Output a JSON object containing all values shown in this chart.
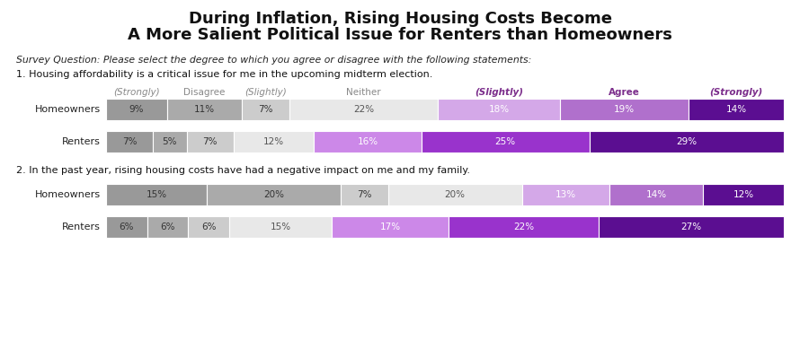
{
  "title_line1": "During Inflation, Rising Housing Costs Become",
  "title_line2": "A More Salient Political Issue for Renters than Homeowners",
  "survey_q": "Survey Question: Please select the degree to which you agree or disagree with the following statements:",
  "q1_label": "1. Housing affordability is a critical issue for me in the upcoming midterm election.",
  "q2_label": "2. In the past year, rising housing costs have had a negative impact on me and my family.",
  "col_headers": [
    "(Strongly)",
    "Disagree",
    "(Slightly)",
    "Neither",
    "(Slightly)",
    "Agree",
    "(Strongly)"
  ],
  "col_header_colors": [
    "#888888",
    "#888888",
    "#888888",
    "#888888",
    "#7B2D8B",
    "#7B2D8B",
    "#7B2D8B"
  ],
  "col_header_italic": [
    true,
    false,
    true,
    false,
    true,
    false,
    true
  ],
  "col_header_bold": [
    false,
    false,
    false,
    false,
    true,
    true,
    true
  ],
  "q1": {
    "homeowners": {
      "values": [
        9,
        11,
        7,
        22,
        18,
        19,
        14
      ],
      "colors": [
        "#999999",
        "#aaaaaa",
        "#cccccc",
        "#e8e8e8",
        "#d4a8e8",
        "#b070cc",
        "#5b0e91"
      ],
      "label_colors": [
        "#333333",
        "#333333",
        "#333333",
        "#555555",
        "#ffffff",
        "#ffffff",
        "#ffffff"
      ]
    },
    "renters": {
      "values": [
        7,
        5,
        7,
        12,
        16,
        25,
        29
      ],
      "colors": [
        "#999999",
        "#aaaaaa",
        "#cccccc",
        "#e8e8e8",
        "#cc88e8",
        "#9933cc",
        "#5b0e91"
      ],
      "label_colors": [
        "#333333",
        "#333333",
        "#333333",
        "#555555",
        "#ffffff",
        "#ffffff",
        "#ffffff"
      ]
    }
  },
  "q2": {
    "homeowners": {
      "values": [
        15,
        20,
        7,
        20,
        13,
        14,
        12
      ],
      "colors": [
        "#999999",
        "#aaaaaa",
        "#cccccc",
        "#e8e8e8",
        "#d4a8e8",
        "#b070cc",
        "#5b0e91"
      ],
      "label_colors": [
        "#333333",
        "#333333",
        "#333333",
        "#555555",
        "#ffffff",
        "#ffffff",
        "#ffffff"
      ]
    },
    "renters": {
      "values": [
        6,
        6,
        6,
        15,
        17,
        22,
        27
      ],
      "colors": [
        "#999999",
        "#aaaaaa",
        "#cccccc",
        "#e8e8e8",
        "#cc88e8",
        "#9933cc",
        "#5b0e91"
      ],
      "label_colors": [
        "#333333",
        "#333333",
        "#333333",
        "#555555",
        "#ffffff",
        "#ffffff",
        "#ffffff"
      ]
    }
  },
  "row_labels": [
    "Homeowners",
    "Renters"
  ],
  "bg_color": "#ffffff"
}
